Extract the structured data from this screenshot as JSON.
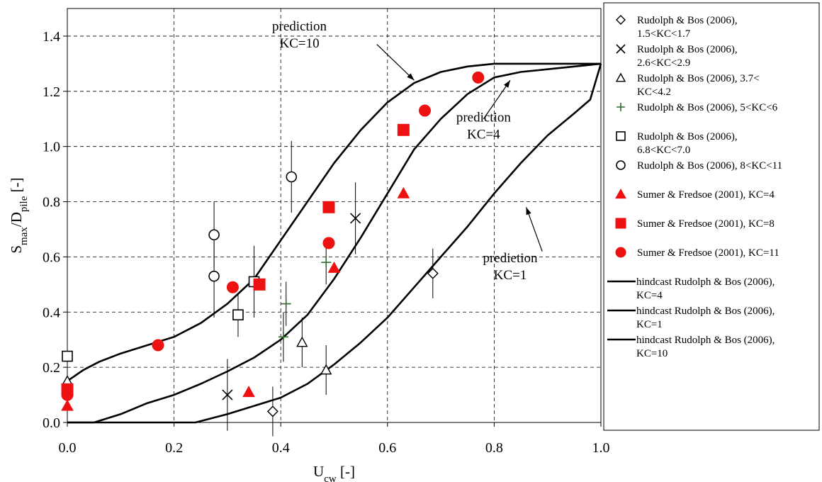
{
  "chart_data": {
    "type": "scatter",
    "xlabel_main": "U",
    "xlabel_sub": "cw",
    "xlabel_tail": " [-]",
    "ylabel_main": "S",
    "ylabel_sub1": "max",
    "ylabel_mid": "/D",
    "ylabel_sub2": "pile",
    "ylabel_tail": " [-]",
    "xlim": [
      0.0,
      1.0
    ],
    "ylim": [
      0.0,
      1.5
    ],
    "xticks": [
      "0.0",
      "0.2",
      "0.4",
      "0.6",
      "0.8",
      "1.0"
    ],
    "yticks": [
      "0.0",
      "0.2",
      "0.4",
      "0.6",
      "0.8",
      "1.0",
      "1.2",
      "1.4"
    ],
    "grid": true,
    "legend_position": "right",
    "colors": {
      "red": "#ee1111",
      "black": "#000000",
      "green": "#2e6b2e"
    },
    "series": [
      {
        "name": "Rudolph & Bos (2006), 1.5<KC<1.7",
        "legend_lines": [
          "Rudolph & Bos (2006),",
          "1.5<KC<1.7"
        ],
        "marker": "diamond",
        "color": "#000000",
        "points": [
          {
            "x": 0.385,
            "y": 0.04,
            "err": 0.09
          },
          {
            "x": 0.685,
            "y": 0.54,
            "err": 0.09
          }
        ]
      },
      {
        "name": "Rudolph & Bos (2006), 2.6<KC<2.9",
        "legend_lines": [
          "Rudolph & Bos (2006),",
          "2.6<KC<2.9"
        ],
        "marker": "x",
        "color": "#000000",
        "points": [
          {
            "x": 0.3,
            "y": 0.1,
            "err": 0.13
          },
          {
            "x": 0.54,
            "y": 0.74,
            "err": 0.13
          }
        ]
      },
      {
        "name": "Rudolph & Bos (2006), 3.7< KC<4.2",
        "legend_lines": [
          "Rudolph & Bos (2006), 3.7<",
          "KC<4.2"
        ],
        "marker": "triangle",
        "color": "#000000",
        "points": [
          {
            "x": 0.0,
            "y": 0.15,
            "err": 0
          },
          {
            "x": 0.44,
            "y": 0.29,
            "err": 0.09
          },
          {
            "x": 0.485,
            "y": 0.19,
            "err": 0.09
          }
        ]
      },
      {
        "name": "Rudolph & Bos (2006), 5<KC<6",
        "legend_lines": [
          "Rudolph & Bos (2006), 5<KC<6"
        ],
        "marker": "plus",
        "color": "#2e6b2e",
        "points": [
          {
            "x": 0.41,
            "y": 0.43,
            "err": 0.08
          },
          {
            "x": 0.405,
            "y": 0.31,
            "err": 0.09
          },
          {
            "x": 0.485,
            "y": 0.58,
            "err": 0.08
          }
        ]
      },
      {
        "name": "Rudolph & Bos (2006), 6.8<KC<7.0",
        "legend_lines": [
          "Rudolph & Bos (2006),",
          "6.8<KC<7.0"
        ],
        "marker": "square",
        "color": "#000000",
        "points": [
          {
            "x": 0.0,
            "y": 0.24,
            "err": 0
          },
          {
            "x": 0.32,
            "y": 0.39,
            "err": 0.08
          },
          {
            "x": 0.35,
            "y": 0.51,
            "err": 0.13
          }
        ]
      },
      {
        "name": "Rudolph & Bos (2006), 8<KC<11",
        "legend_lines": [
          "Rudolph & Bos (2006), 8<KC<11"
        ],
        "marker": "circle",
        "color": "#000000",
        "points": [
          {
            "x": 0.275,
            "y": 0.53,
            "err": 0.15
          },
          {
            "x": 0.275,
            "y": 0.68,
            "err": 0.12
          },
          {
            "x": 0.42,
            "y": 0.89,
            "err": 0.13
          }
        ]
      },
      {
        "name": "Sumer & Fredsoe (2001), KC=4",
        "legend_lines": [
          "Sumer & Fredsoe (2001), KC=4"
        ],
        "marker": "triangle-filled",
        "color": "#ee1111",
        "points": [
          {
            "x": 0.0,
            "y": 0.06
          },
          {
            "x": 0.34,
            "y": 0.11
          },
          {
            "x": 0.5,
            "y": 0.56
          },
          {
            "x": 0.63,
            "y": 0.83
          }
        ]
      },
      {
        "name": "Sumer & Fredsoe (2001), KC=8",
        "legend_lines": [
          "Sumer & Fredsoe (2001), KC=8"
        ],
        "marker": "square-filled",
        "color": "#ee1111",
        "points": [
          {
            "x": 0.0,
            "y": 0.12
          },
          {
            "x": 0.36,
            "y": 0.5
          },
          {
            "x": 0.49,
            "y": 0.78
          },
          {
            "x": 0.63,
            "y": 1.06
          }
        ]
      },
      {
        "name": "Sumer & Fredsoe (2001), KC=11",
        "legend_lines": [
          "Sumer & Fredsoe (2001), KC=11"
        ],
        "marker": "circle-filled",
        "color": "#ee1111",
        "points": [
          {
            "x": 0.0,
            "y": 0.1
          },
          {
            "x": 0.17,
            "y": 0.28
          },
          {
            "x": 0.31,
            "y": 0.49
          },
          {
            "x": 0.49,
            "y": 0.65
          },
          {
            "x": 0.67,
            "y": 1.13
          },
          {
            "x": 0.77,
            "y": 1.25
          }
        ]
      }
    ],
    "curves": [
      {
        "name": "hindcast Rudolph & Bos (2006), KC=4",
        "legend_lines": [
          "hindcast Rudolph & Bos (2006),",
          "KC=4"
        ],
        "points": [
          [
            0,
            0
          ],
          [
            0.05,
            0
          ],
          [
            0.1,
            0.03
          ],
          [
            0.15,
            0.07
          ],
          [
            0.2,
            0.1
          ],
          [
            0.25,
            0.14
          ],
          [
            0.3,
            0.185
          ],
          [
            0.35,
            0.235
          ],
          [
            0.4,
            0.3
          ],
          [
            0.45,
            0.39
          ],
          [
            0.5,
            0.52
          ],
          [
            0.55,
            0.67
          ],
          [
            0.6,
            0.83
          ],
          [
            0.65,
            0.99
          ],
          [
            0.7,
            1.1
          ],
          [
            0.75,
            1.19
          ],
          [
            0.8,
            1.25
          ],
          [
            0.85,
            1.27
          ],
          [
            0.9,
            1.28
          ],
          [
            0.95,
            1.29
          ],
          [
            1.0,
            1.3
          ]
        ]
      },
      {
        "name": "hindcast Rudolph & Bos (2006), KC=1",
        "legend_lines": [
          "hindcast Rudolph & Bos (2006),",
          "KC=1"
        ],
        "points": [
          [
            0,
            0
          ],
          [
            0.24,
            0
          ],
          [
            0.26,
            0.01
          ],
          [
            0.3,
            0.03
          ],
          [
            0.35,
            0.06
          ],
          [
            0.4,
            0.09
          ],
          [
            0.45,
            0.14
          ],
          [
            0.5,
            0.21
          ],
          [
            0.55,
            0.29
          ],
          [
            0.6,
            0.38
          ],
          [
            0.65,
            0.49
          ],
          [
            0.7,
            0.6
          ],
          [
            0.75,
            0.71
          ],
          [
            0.8,
            0.83
          ],
          [
            0.85,
            0.94
          ],
          [
            0.9,
            1.04
          ],
          [
            0.95,
            1.12
          ],
          [
            0.98,
            1.17
          ],
          [
            1.0,
            1.3
          ]
        ]
      },
      {
        "name": "hindcast Rudolph & Bos (2006), KC=10",
        "legend_lines": [
          "hindcast Rudolph & Bos (2006),",
          "KC=10"
        ],
        "points": [
          [
            0,
            0.15
          ],
          [
            0.03,
            0.19
          ],
          [
            0.06,
            0.22
          ],
          [
            0.1,
            0.25
          ],
          [
            0.15,
            0.28
          ],
          [
            0.2,
            0.31
          ],
          [
            0.25,
            0.36
          ],
          [
            0.3,
            0.43
          ],
          [
            0.35,
            0.52
          ],
          [
            0.4,
            0.66
          ],
          [
            0.45,
            0.8
          ],
          [
            0.5,
            0.94
          ],
          [
            0.55,
            1.06
          ],
          [
            0.6,
            1.16
          ],
          [
            0.65,
            1.23
          ],
          [
            0.7,
            1.27
          ],
          [
            0.75,
            1.29
          ],
          [
            0.8,
            1.3
          ],
          [
            0.9,
            1.3
          ],
          [
            1.0,
            1.3
          ]
        ]
      }
    ],
    "annotations": [
      {
        "lines": [
          "prediction",
          "KC=10"
        ],
        "text_x": 0.435,
        "text_y": 1.42,
        "arrow_from": [
          0.58,
          1.37
        ],
        "arrow_to": [
          0.65,
          1.24
        ]
      },
      {
        "lines": [
          "prediction",
          "KC=4"
        ],
        "text_x": 0.78,
        "text_y": 1.09,
        "arrow_from": [
          0.78,
          1.1
        ],
        "arrow_to": [
          0.83,
          1.24
        ]
      },
      {
        "lines": [
          "predietion",
          "KC=1"
        ],
        "text_x": 0.83,
        "text_y": 0.58,
        "arrow_from": [
          0.89,
          0.62
        ],
        "arrow_to": [
          0.86,
          0.78
        ]
      }
    ]
  }
}
